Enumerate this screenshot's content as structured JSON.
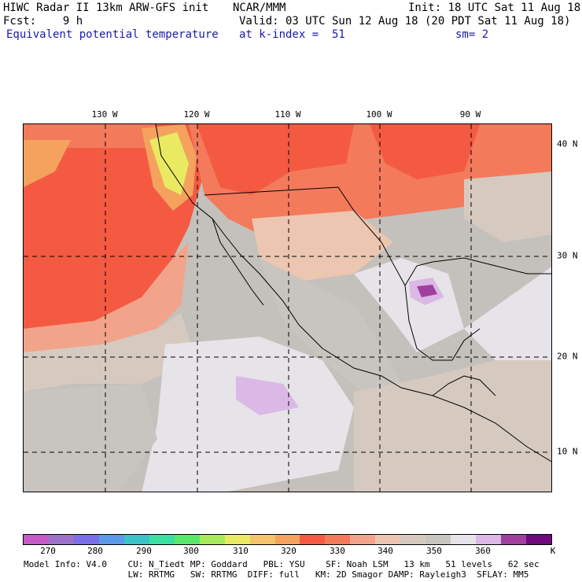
{
  "header": {
    "line1_left": "HIWC Radar II 13km ARW-GFS init",
    "line1_mid": "NCAR/MMM",
    "line1_right": "Init: 18 UTC Sat 11 Aug 18",
    "line2_left": "Fcst:    9 h",
    "line2_right": "Valid: 03 UTC Sun 12 Aug 18 (20 PDT Sat 11 Aug 18)",
    "line3_left": "Equivalent potential temperature",
    "line3_mid": "at k-index =  51",
    "line3_right": "sm= 2"
  },
  "map": {
    "lon_labels": [
      "130 W",
      "120 W",
      "110 W",
      "100 W",
      "90 W"
    ],
    "lat_labels": [
      "40 N",
      "30 N",
      "20 N",
      "10 N"
    ]
  },
  "colorbar": {
    "colors": [
      "#c65ac6",
      "#9a72c8",
      "#7c6ee6",
      "#5a9ae8",
      "#3ac4c8",
      "#3ae0a2",
      "#5ae86a",
      "#a8ea5c",
      "#eaea62",
      "#f4c46a",
      "#f4a25e",
      "#f45a42",
      "#f47a5c",
      "#f2a48a",
      "#ecc6b0",
      "#d6cac0",
      "#c8c4c0",
      "#e6e4e8",
      "#dcb8e6",
      "#a0409e",
      "#6e0a7a"
    ],
    "ticks": [
      "270",
      "280",
      "290",
      "300",
      "310",
      "320",
      "330",
      "340",
      "350",
      "360"
    ],
    "unit": "K"
  },
  "footer": {
    "line1": "Model Info: V4.0    CU: N_Tiedt MP: Goddard   PBL: YSU    SF: Noah LSM   13 km   51 levels   62 sec",
    "line2": "                    LW: RRTMG   SW: RRTMG  DIFF: full   KM: 2D Smagor DAMP: Rayleigh3  SFLAY: MM5"
  }
}
